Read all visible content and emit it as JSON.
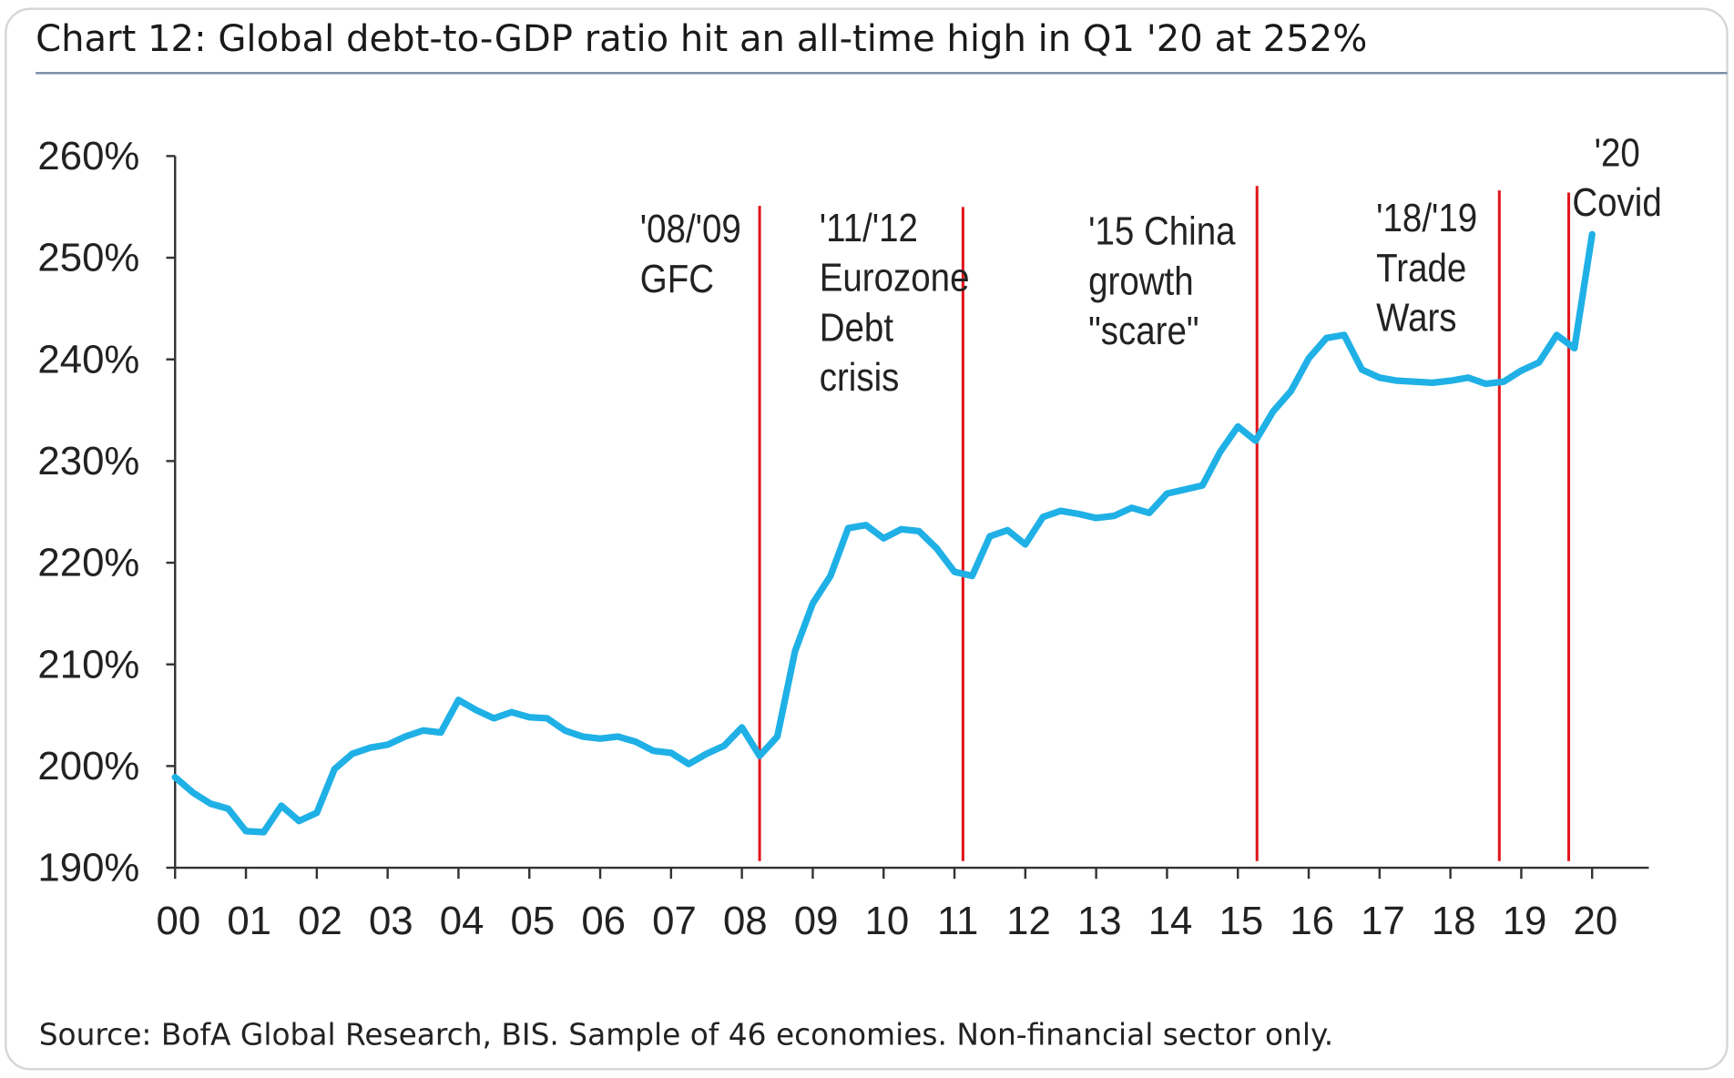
{
  "chart_data": {
    "type": "line",
    "title": "Chart 12: Global debt-to-GDP ratio hit an all-time high in Q1 '20 at 252%",
    "source": "Source: BofA Global Research, BIS. Sample of 46 economies. Non-financial sector only.",
    "x": [
      2000,
      2000.25,
      2000.5,
      2000.75,
      2001,
      2001.25,
      2001.5,
      2001.75,
      2002,
      2002.25,
      2002.5,
      2002.75,
      2003,
      2003.25,
      2003.5,
      2003.75,
      2004,
      2004.25,
      2004.5,
      2004.75,
      2005,
      2005.25,
      2005.5,
      2005.75,
      2006,
      2006.25,
      2006.5,
      2006.75,
      2007,
      2007.25,
      2007.5,
      2007.75,
      2008,
      2008.25,
      2008.5,
      2008.75,
      2009,
      2009.25,
      2009.5,
      2009.75,
      2010,
      2010.25,
      2010.5,
      2010.75,
      2011,
      2011.25,
      2011.5,
      2011.75,
      2012,
      2012.25,
      2012.5,
      2012.75,
      2013,
      2013.25,
      2013.5,
      2013.75,
      2014,
      2014.25,
      2014.5,
      2014.75,
      2015,
      2015.25,
      2015.5,
      2015.75,
      2016,
      2016.25,
      2016.5,
      2016.75,
      2017,
      2017.25,
      2017.5,
      2017.75,
      2018,
      2018.25,
      2018.5,
      2018.75,
      2019,
      2019.25,
      2019.5,
      2019.75,
      2020
    ],
    "series": [
      {
        "color": "#1fb0e6",
        "values": [
          198.9,
          197.4,
          196.3,
          195.8,
          193.6,
          193.5,
          196.1,
          194.6,
          195.4,
          199.7,
          201.2,
          201.8,
          202.1,
          202.9,
          203.5,
          203.3,
          206.5,
          205.5,
          204.7,
          205.3,
          204.8,
          204.7,
          203.5,
          202.9,
          202.7,
          202.9,
          202.4,
          201.5,
          201.3,
          200.2,
          201.2,
          202.0,
          203.8,
          201.0,
          202.9,
          211.3,
          216.0,
          218.7,
          223.4,
          223.7,
          222.4,
          223.3,
          223.1,
          221.4,
          219.1,
          218.7,
          222.6,
          223.2,
          221.8,
          224.5,
          225.1,
          224.8,
          224.4,
          224.6,
          225.4,
          224.9,
          226.8,
          227.2,
          227.6,
          230.9,
          233.4,
          232.0,
          234.9,
          236.9,
          240.1,
          242.1,
          242.4,
          239.0,
          238.2,
          237.9,
          237.8,
          237.7,
          237.9,
          238.2,
          237.6,
          237.8,
          238.9,
          239.7,
          242.4,
          241.1,
          252.3
        ]
      }
    ],
    "xlim": [
      2000,
      2020.8
    ],
    "ylim": [
      190,
      260
    ],
    "xticks": [
      {
        "value": 2000,
        "label": "00"
      },
      {
        "value": 2001,
        "label": "01"
      },
      {
        "value": 2002,
        "label": "02"
      },
      {
        "value": 2003,
        "label": "03"
      },
      {
        "value": 2004,
        "label": "04"
      },
      {
        "value": 2005,
        "label": "05"
      },
      {
        "value": 2006,
        "label": "06"
      },
      {
        "value": 2007,
        "label": "07"
      },
      {
        "value": 2008,
        "label": "08"
      },
      {
        "value": 2009,
        "label": "09"
      },
      {
        "value": 2010,
        "label": "10"
      },
      {
        "value": 2011,
        "label": "11"
      },
      {
        "value": 2012,
        "label": "12"
      },
      {
        "value": 2013,
        "label": "13"
      },
      {
        "value": 2014,
        "label": "14"
      },
      {
        "value": 2015,
        "label": "15"
      },
      {
        "value": 2016,
        "label": "16"
      },
      {
        "value": 2017,
        "label": "17"
      },
      {
        "value": 2018,
        "label": "18"
      },
      {
        "value": 2019,
        "label": "19"
      },
      {
        "value": 2020,
        "label": "20"
      }
    ],
    "yticks": [
      {
        "value": 190,
        "label": "190%"
      },
      {
        "value": 200,
        "label": "200%"
      },
      {
        "value": 210,
        "label": "210%"
      },
      {
        "value": 220,
        "label": "220%"
      },
      {
        "value": 230,
        "label": "230%"
      },
      {
        "value": 240,
        "label": "240%"
      },
      {
        "value": 250,
        "label": "250%"
      },
      {
        "value": 260,
        "label": "260%"
      }
    ],
    "annotations": [
      {
        "x": 2008.25,
        "color": "#e0161b",
        "lines": [
          "'08/'09",
          "GFC"
        ]
      },
      {
        "x": 2011.12,
        "color": "#e0161b",
        "lines": [
          "'11/'12",
          "Eurozone",
          "Debt",
          "crisis"
        ]
      },
      {
        "x": 2015.27,
        "color": "#e0161b",
        "lines": [
          "'15 China",
          "growth",
          "\"scare\""
        ]
      },
      {
        "x": 2018.69,
        "color": "#e0161b",
        "lines": [
          "'18/'19",
          "Trade",
          "Wars"
        ]
      },
      {
        "x": 2019.67,
        "color": "#e0161b",
        "lines": [
          "'20",
          "Covid"
        ]
      }
    ]
  }
}
